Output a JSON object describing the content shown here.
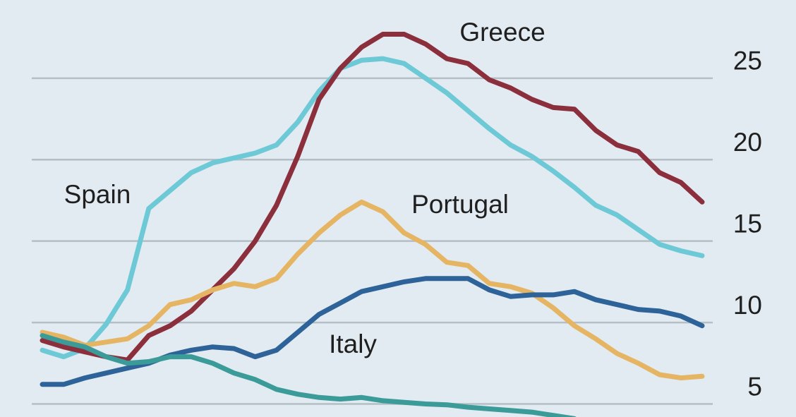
{
  "chart_data": {
    "type": "line",
    "categories": [
      null,
      null,
      null,
      null,
      null,
      null,
      null,
      null,
      null,
      null,
      null,
      null,
      null,
      null,
      null,
      null,
      null,
      null,
      null,
      null,
      null,
      null,
      null,
      null,
      null,
      null,
      null,
      null,
      null,
      null,
      null,
      null
    ],
    "ylim": [
      4.2,
      29.8
    ],
    "yticks": [
      5,
      10,
      15,
      20,
      25
    ],
    "grid": true,
    "y_axis_side": "right",
    "series": [
      {
        "name": "Spain",
        "color": "#6ec9d6",
        "values": [
          8.3,
          7.9,
          8.4,
          9.9,
          12.0,
          17.0,
          18.1,
          19.2,
          19.8,
          20.1,
          20.4,
          20.9,
          22.3,
          24.2,
          25.6,
          26.1,
          26.2,
          25.9,
          25.0,
          24.1,
          23.0,
          21.9,
          20.9,
          20.2,
          19.3,
          18.3,
          17.2,
          16.6,
          15.7,
          14.8,
          14.4,
          14.1
        ]
      },
      {
        "name": "Greece",
        "color": "#8c2f3d",
        "values": [
          8.9,
          8.5,
          8.2,
          7.9,
          7.7,
          9.2,
          9.8,
          10.7,
          12.0,
          13.3,
          15.0,
          17.2,
          20.2,
          23.7,
          25.6,
          26.9,
          27.7,
          27.7,
          27.1,
          26.2,
          25.9,
          24.9,
          24.4,
          23.7,
          23.2,
          23.1,
          21.8,
          20.9,
          20.5,
          19.2,
          18.6,
          17.4
        ]
      },
      {
        "name": "Portugal",
        "color": "#e6b564",
        "values": [
          9.4,
          9.1,
          8.6,
          8.8,
          9.0,
          9.8,
          11.1,
          11.4,
          12.0,
          12.4,
          12.2,
          12.7,
          14.2,
          15.5,
          16.6,
          17.4,
          16.8,
          15.5,
          14.8,
          13.7,
          13.5,
          12.4,
          12.2,
          11.8,
          10.9,
          9.8,
          9.0,
          8.1,
          7.5,
          6.8,
          6.6,
          6.7
        ]
      },
      {
        "name": "Italy",
        "color": "#2d6399",
        "values": [
          6.2,
          6.2,
          6.6,
          6.9,
          7.2,
          7.5,
          8.0,
          8.3,
          8.5,
          8.4,
          7.9,
          8.3,
          9.4,
          10.5,
          11.2,
          11.9,
          12.2,
          12.5,
          12.7,
          12.7,
          12.7,
          12.0,
          11.6,
          11.7,
          11.7,
          11.9,
          11.4,
          11.1,
          10.8,
          10.7,
          10.4,
          9.8
        ]
      },
      {
        "color": "#3a9b98",
        "values": [
          9.2,
          8.8,
          8.5,
          7.9,
          7.5,
          7.6,
          7.9,
          7.9,
          7.5,
          6.9,
          6.5,
          5.9,
          5.6,
          5.4,
          5.3,
          5.4,
          5.2,
          5.1,
          5.0,
          4.95,
          4.8,
          4.7,
          4.6,
          4.5,
          4.3,
          4.1,
          null,
          null,
          null,
          null,
          null,
          null
        ]
      }
    ]
  }
}
